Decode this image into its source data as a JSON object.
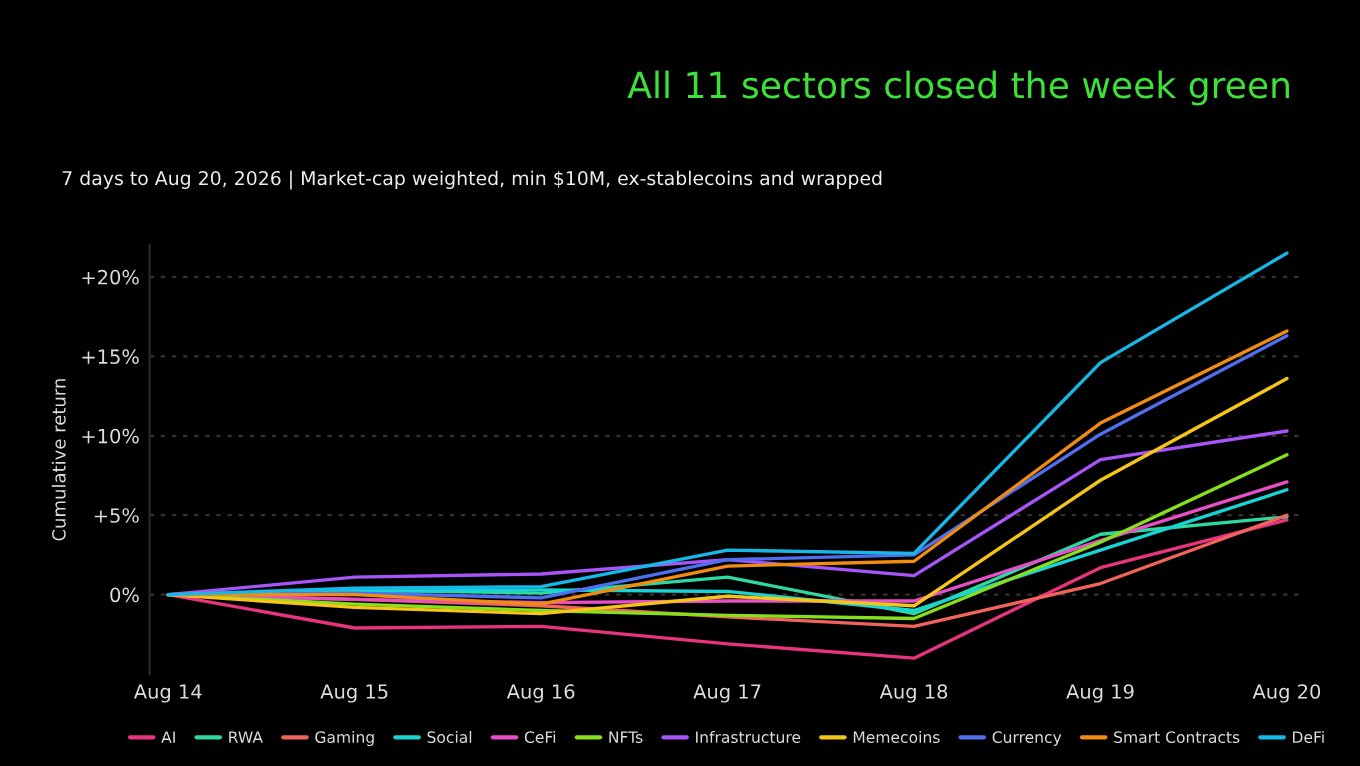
{
  "chart_data": {
    "type": "line",
    "title": "All 11 sectors closed the week green",
    "subtitle": "7 days to Aug 20, 2026 | Market-cap weighted, min $10M, ex-stablecoins and wrapped",
    "ylabel": "Cumulative return",
    "categories": [
      "Aug 14",
      "Aug 15",
      "Aug 16",
      "Aug 17",
      "Aug 18",
      "Aug 19",
      "Aug 20"
    ],
    "series": [
      {
        "name": "AI",
        "color": "#e8337f",
        "values": [
          0,
          -2.1,
          -2.0,
          -3.1,
          -4.0,
          1.7,
          4.7
        ]
      },
      {
        "name": "RWA",
        "color": "#2ed8a0",
        "values": [
          0,
          0.3,
          0.1,
          1.1,
          -1.2,
          3.8,
          4.9
        ]
      },
      {
        "name": "Gaming",
        "color": "#f0645a",
        "values": [
          0,
          -0.3,
          -0.7,
          -1.4,
          -2.0,
          0.7,
          5.0
        ]
      },
      {
        "name": "Social",
        "color": "#19d4d4",
        "values": [
          0,
          0.2,
          0.3,
          0.2,
          -1.0,
          2.8,
          6.6
        ]
      },
      {
        "name": "CeFi",
        "color": "#e64fc8",
        "values": [
          0,
          -0.3,
          -0.5,
          -0.4,
          -0.4,
          3.4,
          7.1
        ]
      },
      {
        "name": "NFTs",
        "color": "#86e01e",
        "values": [
          0,
          -0.6,
          -1.0,
          -1.3,
          -1.5,
          3.3,
          8.8
        ]
      },
      {
        "name": "Infrastructure",
        "color": "#a855f7",
        "values": [
          0,
          1.1,
          1.3,
          2.2,
          1.2,
          8.5,
          10.3
        ]
      },
      {
        "name": "Memecoins",
        "color": "#f5c518",
        "values": [
          0,
          -0.8,
          -1.2,
          -0.1,
          -0.7,
          7.2,
          13.6
        ]
      },
      {
        "name": "Currency",
        "color": "#4f6ef0",
        "values": [
          0,
          0.1,
          -0.2,
          2.2,
          2.5,
          10.1,
          16.3
        ]
      },
      {
        "name": "Smart Contracts",
        "color": "#f08c10",
        "values": [
          0,
          0.0,
          -0.6,
          1.8,
          2.1,
          10.8,
          16.6
        ]
      },
      {
        "name": "DeFi",
        "color": "#16b8e8",
        "values": [
          0,
          0.4,
          0.5,
          2.8,
          2.6,
          14.6,
          21.5
        ]
      }
    ],
    "ylim": [
      -5,
      22
    ],
    "yticks": [
      {
        "value": 0,
        "label": "0%"
      },
      {
        "value": 5,
        "label": "+5%"
      },
      {
        "value": 10,
        "label": "+10%"
      },
      {
        "value": 15,
        "label": "+15%"
      },
      {
        "value": 20,
        "label": "+20%"
      }
    ],
    "grid": "y",
    "legend": "bottom",
    "marker": "none",
    "line_style": "solid"
  }
}
